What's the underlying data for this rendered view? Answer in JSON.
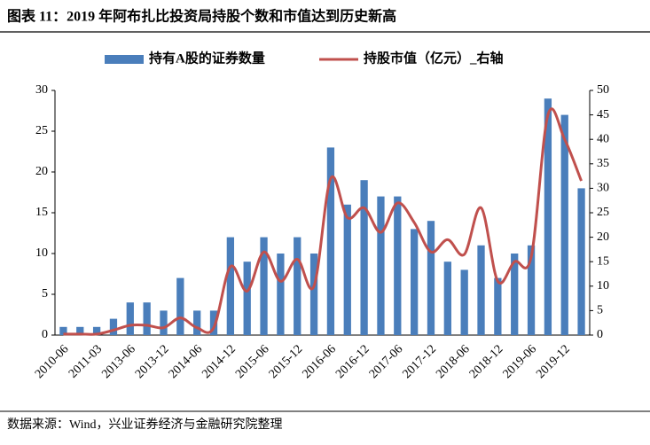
{
  "title": "图表 11：2019 年阿布扎比投资局持股个数和市值达到历史新高",
  "source": "数据来源：Wind，兴业证券经济与金融研究院整理",
  "chart_data": {
    "type": "bar-line",
    "categories": [
      "2010-06",
      null,
      "2011-03",
      null,
      "2013-06",
      null,
      "2013-12",
      null,
      "2014-06",
      null,
      "2014-12",
      null,
      "2015-06",
      null,
      "2015-12",
      null,
      "2016-06",
      null,
      "2016-12",
      null,
      "2017-06",
      null,
      "2017-12",
      null,
      "2018-06",
      null,
      "2018-12",
      null,
      "2019-06",
      null,
      "2019-12",
      null
    ],
    "series": [
      {
        "name": "持有A股的证券数量",
        "color": "#4a7ebb",
        "kind": "bar",
        "values": [
          1,
          1,
          1,
          2,
          4,
          4,
          3,
          7,
          3,
          3,
          12,
          9,
          12,
          10,
          12,
          10,
          23,
          16,
          19,
          17,
          17,
          13,
          14,
          9,
          8,
          11,
          7,
          10,
          11,
          29,
          27,
          18
        ]
      },
      {
        "name": "持股市值（亿元）_右轴",
        "color": "#c0504d",
        "kind": "line",
        "axis": "y2",
        "values": [
          0.2,
          0.2,
          0.2,
          1,
          2,
          2,
          1.5,
          3.5,
          1.5,
          1.5,
          14,
          9,
          17,
          11,
          15.5,
          10,
          32,
          24,
          26,
          21,
          27,
          23,
          17,
          19.5,
          16.5,
          26,
          11,
          15,
          16,
          45,
          40,
          31.5
        ]
      }
    ],
    "ylim": [
      0,
      30
    ],
    "yticks": [
      0,
      5,
      10,
      15,
      20,
      25,
      30
    ],
    "y2lim": [
      0,
      50
    ],
    "y2ticks": [
      0,
      5,
      10,
      15,
      20,
      25,
      30,
      35,
      40,
      45,
      50
    ],
    "legend": "top"
  }
}
